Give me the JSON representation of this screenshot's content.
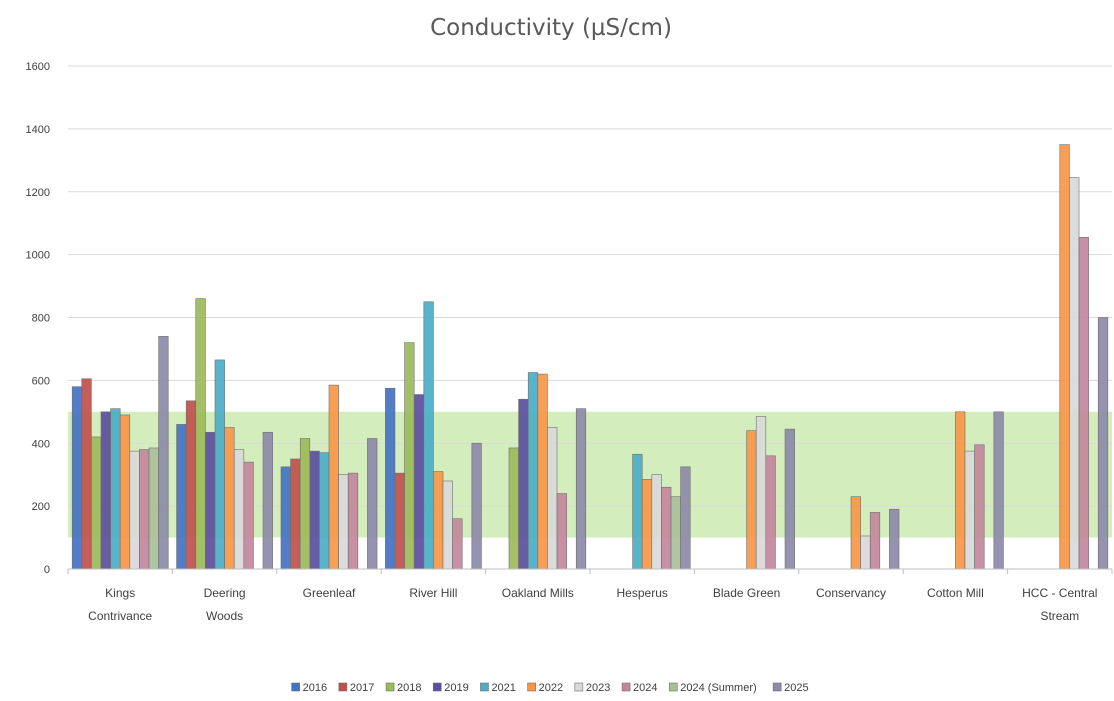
{
  "chart_data": {
    "type": "bar",
    "title": "Conductivity (µS/cm)",
    "xlabel": "",
    "ylabel": "",
    "ylim": [
      0,
      1600
    ],
    "yticks": [
      0,
      200,
      400,
      600,
      800,
      1000,
      1200,
      1400,
      1600
    ],
    "grid": true,
    "legend_position": "bottom",
    "target_band": [
      100,
      500
    ],
    "target_band_color": "#d4edbc",
    "categories": [
      [
        "Kings",
        "Contrivance"
      ],
      [
        "Deering",
        "Woods"
      ],
      [
        "Greenleaf"
      ],
      [
        "River Hill"
      ],
      [
        "Oakland Mills"
      ],
      [
        "Hesperus"
      ],
      [
        "Blade Green"
      ],
      [
        "Conservancy"
      ],
      [
        "Cotton Mill"
      ],
      [
        "HCC - Central",
        "Stream"
      ]
    ],
    "series": [
      {
        "name": "2016",
        "color": "#4472c4",
        "values": [
          580,
          460,
          325,
          575,
          null,
          null,
          null,
          null,
          null,
          null
        ]
      },
      {
        "name": "2017",
        "color": "#c0504d",
        "values": [
          605,
          535,
          350,
          305,
          null,
          null,
          null,
          null,
          null,
          null
        ]
      },
      {
        "name": "2018",
        "color": "#9bbb59",
        "values": [
          420,
          860,
          415,
          720,
          385,
          null,
          null,
          null,
          null,
          null
        ]
      },
      {
        "name": "2019",
        "color": "#5b4e9e",
        "values": [
          500,
          435,
          375,
          555,
          540,
          null,
          null,
          null,
          null,
          null
        ]
      },
      {
        "name": "2021",
        "color": "#4bacc6",
        "values": [
          510,
          665,
          370,
          850,
          625,
          365,
          null,
          null,
          null,
          null
        ]
      },
      {
        "name": "2022",
        "color": "#f79646",
        "values": [
          490,
          450,
          585,
          310,
          620,
          285,
          440,
          230,
          500,
          1350
        ]
      },
      {
        "name": "2023",
        "color": "#d9d9d9",
        "values": [
          375,
          380,
          300,
          280,
          450,
          300,
          485,
          105,
          375,
          1245
        ]
      },
      {
        "name": "2024",
        "color": "#c3879d",
        "values": [
          380,
          340,
          305,
          160,
          240,
          260,
          360,
          180,
          395,
          1055
        ]
      },
      {
        "name": "2024 (Summer)",
        "color": "#a8bf98",
        "values": [
          385,
          null,
          null,
          null,
          null,
          230,
          null,
          null,
          null,
          null
        ]
      },
      {
        "name": "2025",
        "color": "#8c8aa8",
        "values": [
          740,
          435,
          415,
          400,
          510,
          325,
          445,
          190,
          500,
          800
        ]
      }
    ]
  }
}
